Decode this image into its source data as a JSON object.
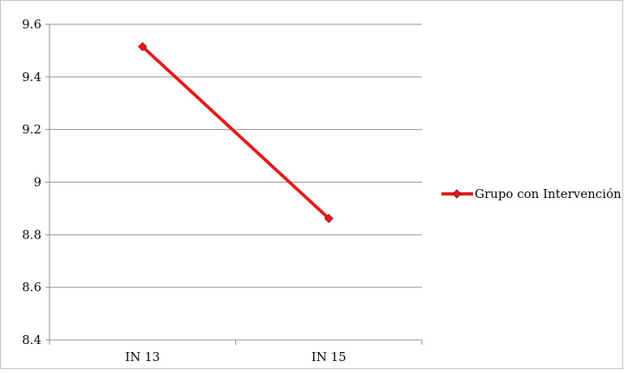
{
  "chart_data": {
    "type": "line",
    "categories": [
      "IN 13",
      "IN 15"
    ],
    "series": [
      {
        "name": "Grupo con Intervención",
        "values": [
          9.515,
          8.862
        ],
        "color": "#e41a1c",
        "marker": "diamond"
      }
    ],
    "yticks": [
      "8.4",
      "8.6",
      "8.8",
      "9",
      "9.2",
      "9.4",
      "9.6"
    ],
    "ylim": [
      8.4,
      9.6
    ],
    "grid": true,
    "legend_position": "right"
  }
}
